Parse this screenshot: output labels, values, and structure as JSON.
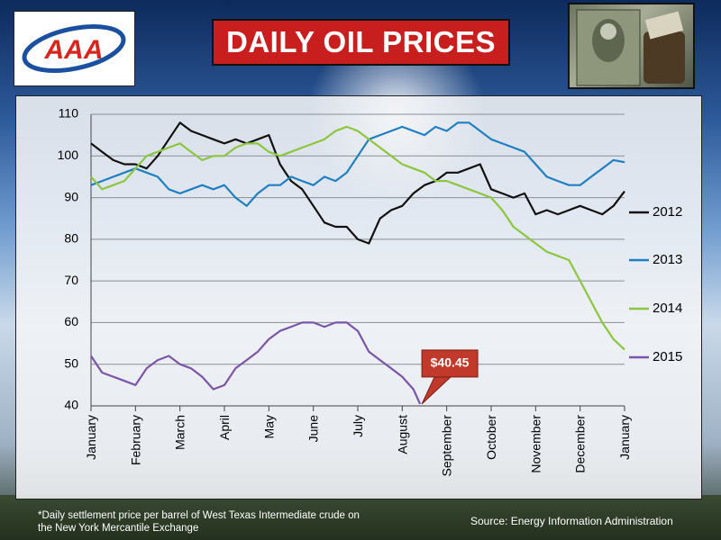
{
  "header": {
    "logo_text": "AAA",
    "title": "DAILY OIL PRICES"
  },
  "colors": {
    "title_bg": "#c81e1e",
    "series_2012": "#111111",
    "series_2013": "#1f7fc1",
    "series_2014": "#8cc63f",
    "series_2015": "#7a55a8",
    "callout_bg": "#c0392b"
  },
  "footer": {
    "footnote_line1": "*Daily settlement price per barrel of West Texas Intermediate crude on",
    "footnote_line2": "the New York Mercantile Exchange",
    "source": "Source: Energy Information Administration"
  },
  "chart_data": {
    "type": "line",
    "title": "DAILY OIL PRICES",
    "xlabel": "",
    "ylabel": "",
    "ylim": [
      40,
      110
    ],
    "yticks": [
      40,
      50,
      60,
      70,
      80,
      90,
      100,
      110
    ],
    "x_months": [
      "January",
      "February",
      "March",
      "April",
      "May",
      "June",
      "July",
      "August",
      "September",
      "October",
      "November",
      "December",
      "January"
    ],
    "x_month_index": [
      0,
      1,
      2,
      3,
      4,
      5,
      6,
      7,
      8,
      9,
      10,
      11,
      12
    ],
    "grid": true,
    "legend": "right",
    "annotation": {
      "text": "$40.45",
      "x": 7.4,
      "y": 40.45
    },
    "series": [
      {
        "name": "2012",
        "x": [
          0,
          0.25,
          0.5,
          0.75,
          1,
          1.25,
          1.5,
          1.75,
          2,
          2.25,
          2.5,
          2.75,
          3,
          3.25,
          3.5,
          3.75,
          4,
          4.25,
          4.5,
          4.75,
          5,
          5.25,
          5.5,
          5.75,
          6,
          6.25,
          6.5,
          6.75,
          7,
          7.25,
          7.5,
          7.75,
          8,
          8.25,
          8.5,
          8.75,
          9,
          9.25,
          9.5,
          9.75,
          10,
          10.25,
          10.5,
          10.75,
          11,
          11.25,
          11.5,
          11.75,
          12
        ],
        "values": [
          103,
          101,
          99,
          98,
          98,
          97,
          100,
          104,
          108,
          106,
          105,
          104,
          103,
          104,
          103,
          104,
          105,
          98,
          94,
          92,
          88,
          84,
          83,
          83,
          80,
          79,
          85,
          87,
          88,
          91,
          93,
          94,
          96,
          96,
          97,
          98,
          92,
          91,
          90,
          91,
          86,
          87,
          86,
          87,
          88,
          87,
          86,
          88,
          91.5
        ]
      },
      {
        "name": "2013",
        "x": [
          0,
          0.25,
          0.5,
          0.75,
          1,
          1.25,
          1.5,
          1.75,
          2,
          2.25,
          2.5,
          2.75,
          3,
          3.25,
          3.5,
          3.75,
          4,
          4.25,
          4.5,
          4.75,
          5,
          5.25,
          5.5,
          5.75,
          6,
          6.25,
          6.5,
          6.75,
          7,
          7.25,
          7.5,
          7.75,
          8,
          8.25,
          8.5,
          8.75,
          9,
          9.25,
          9.5,
          9.75,
          10,
          10.25,
          10.5,
          10.75,
          11,
          11.25,
          11.5,
          11.75,
          12
        ],
        "values": [
          93,
          94,
          95,
          96,
          97,
          96,
          95,
          92,
          91,
          92,
          93,
          92,
          93,
          90,
          88,
          91,
          93,
          93,
          95,
          94,
          93,
          95,
          94,
          96,
          100,
          104,
          105,
          106,
          107,
          106,
          105,
          107,
          106,
          108,
          108,
          106,
          104,
          103,
          102,
          101,
          98,
          95,
          94,
          93,
          93,
          95,
          97,
          99,
          98.5
        ]
      },
      {
        "name": "2014",
        "x": [
          0,
          0.25,
          0.5,
          0.75,
          1,
          1.25,
          1.5,
          1.75,
          2,
          2.25,
          2.5,
          2.75,
          3,
          3.25,
          3.5,
          3.75,
          4,
          4.25,
          4.5,
          4.75,
          5,
          5.25,
          5.5,
          5.75,
          6,
          6.25,
          6.5,
          6.75,
          7,
          7.25,
          7.5,
          7.75,
          8,
          8.25,
          8.5,
          8.75,
          9,
          9.25,
          9.5,
          9.75,
          10,
          10.25,
          10.5,
          10.75,
          11,
          11.25,
          11.5,
          11.75,
          12
        ],
        "values": [
          95,
          92,
          93,
          94,
          97,
          100,
          101,
          102,
          103,
          101,
          99,
          100,
          100,
          102,
          103,
          103,
          101,
          100,
          101,
          102,
          103,
          104,
          106,
          107,
          106,
          104,
          102,
          100,
          98,
          97,
          96,
          94,
          94,
          93,
          92,
          91,
          90,
          87,
          83,
          81,
          79,
          77,
          76,
          75,
          70,
          65,
          60,
          56,
          53.5
        ]
      },
      {
        "name": "2015",
        "x": [
          0,
          0.25,
          0.5,
          0.75,
          1,
          1.25,
          1.5,
          1.75,
          2,
          2.25,
          2.5,
          2.75,
          3,
          3.25,
          3.5,
          3.75,
          4,
          4.25,
          4.5,
          4.75,
          5,
          5.25,
          5.5,
          5.75,
          6,
          6.25,
          6.5,
          6.75,
          7,
          7.25,
          7.4
        ],
        "values": [
          52,
          48,
          47,
          46,
          45,
          49,
          51,
          52,
          50,
          49,
          47,
          44,
          45,
          49,
          51,
          53,
          56,
          58,
          59,
          60,
          60,
          59,
          60,
          60,
          58,
          53,
          51,
          49,
          47,
          44,
          40.45
        ]
      }
    ]
  }
}
